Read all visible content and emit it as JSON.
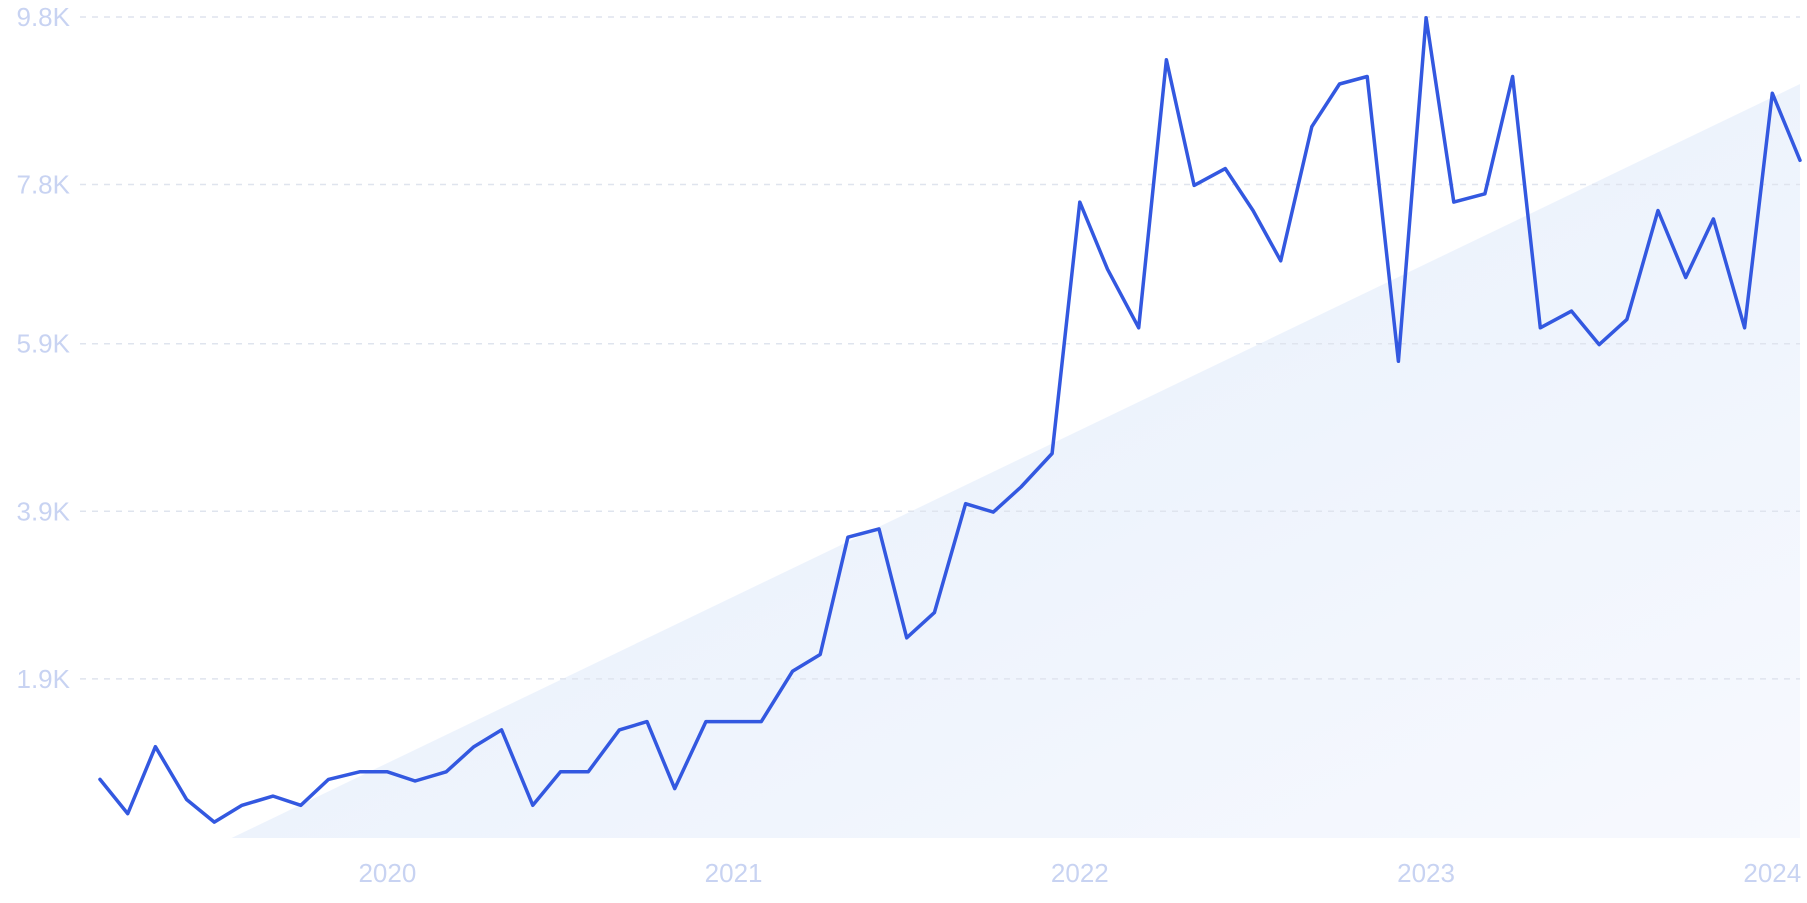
{
  "chart_data": {
    "type": "line",
    "title": "",
    "xlabel": "",
    "ylabel": "",
    "y_ticks": [
      {
        "value": 1900,
        "label": "1.9K"
      },
      {
        "value": 3900,
        "label": "3.9K"
      },
      {
        "value": 5900,
        "label": "5.9K"
      },
      {
        "value": 7800,
        "label": "7.8K"
      },
      {
        "value": 9800,
        "label": "9.8K"
      }
    ],
    "x_ticks": [
      {
        "value": 2020.0,
        "label": "2020"
      },
      {
        "value": 2021.0,
        "label": "2021"
      },
      {
        "value": 2022.0,
        "label": "2022"
      },
      {
        "value": 2023.0,
        "label": "2023"
      },
      {
        "value": 2024.0,
        "label": "2024"
      }
    ],
    "xlim": [
      2019.17,
      2024.08
    ],
    "ylim": [
      0,
      9800
    ],
    "grid": true,
    "legend": "none",
    "colors": {
      "line": "#3358e0",
      "grid": "#dfe4ee",
      "tick_text": "#c8d3f2",
      "trend_fill": "#e8f0fc"
    },
    "trend": {
      "x": [
        2019.55,
        2024.08
      ],
      "y": [
        0,
        9000
      ]
    },
    "series": [
      {
        "x": [
          2019.17,
          2019.25,
          2019.33,
          2019.42,
          2019.5,
          2019.58,
          2019.67,
          2019.75,
          2019.83,
          2019.92,
          2020.0,
          2020.08,
          2020.17,
          2020.25,
          2020.33,
          2020.42,
          2020.5,
          2020.58,
          2020.67,
          2020.75,
          2020.83,
          2020.92,
          2021.0,
          2021.08,
          2021.17,
          2021.25,
          2021.33,
          2021.42,
          2021.5,
          2021.58,
          2021.67,
          2021.75,
          2021.83,
          2021.92,
          2022.0,
          2022.08,
          2022.17,
          2022.25,
          2022.33,
          2022.42,
          2022.5,
          2022.58,
          2022.67,
          2022.75,
          2022.83,
          2022.92,
          2023.0,
          2023.08,
          2023.17,
          2023.25,
          2023.33,
          2023.42,
          2023.5,
          2023.58,
          2023.67,
          2023.75,
          2023.83,
          2023.92,
          2024.0,
          2024.08
        ],
        "values": [
          700,
          290,
          1090,
          460,
          190,
          390,
          500,
          390,
          700,
          790,
          790,
          680,
          790,
          1090,
          1290,
          390,
          790,
          790,
          1290,
          1390,
          590,
          1390,
          1390,
          1390,
          1990,
          2190,
          3590,
          3690,
          2390,
          2690,
          3990,
          3890,
          4190,
          4590,
          7590,
          6790,
          6090,
          9290,
          7790,
          7990,
          7490,
          6890,
          8490,
          9000,
          9090,
          5690,
          9790,
          7590,
          7690,
          9090,
          6090,
          6290,
          5890,
          6190,
          7490,
          6690,
          7390,
          6090,
          8890,
          8090
        ]
      }
    ]
  }
}
